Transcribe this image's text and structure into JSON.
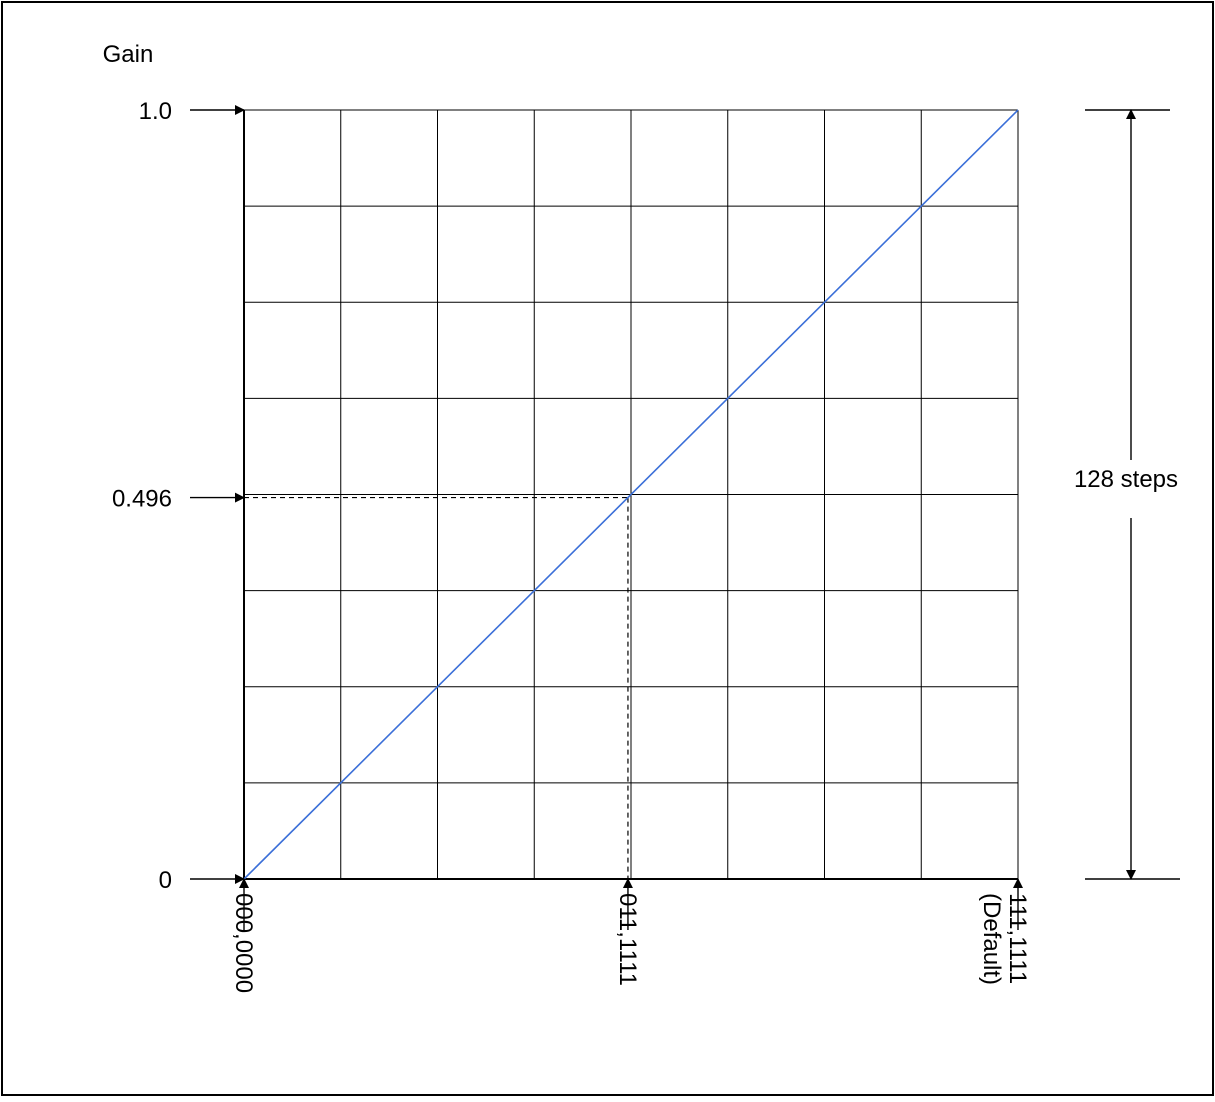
{
  "chart_data": {
    "type": "line",
    "ylabel": "Gain",
    "y_tick_labels": [
      "1.0",
      "0.496",
      "0"
    ],
    "y_ticks": [
      1.0,
      0.496,
      0
    ],
    "ylim": [
      0,
      1.0
    ],
    "x_tick_labels": [
      {
        "code": "000,0000",
        "note": ""
      },
      {
        "code": "011,1111",
        "note": ""
      },
      {
        "code": "111,1111",
        "note": "(Default)"
      }
    ],
    "x_ticks": [
      0,
      63,
      127
    ],
    "xlim": [
      0,
      127
    ],
    "grid": true,
    "grid_columns": 8,
    "grid_rows": 8,
    "series": [
      {
        "x": [
          0,
          127
        ],
        "y": [
          0,
          1.0
        ]
      }
    ],
    "marker": {
      "x": 63,
      "y": 0.496
    },
    "range_annotation": "128 steps",
    "line_color": "#3b6fd8"
  }
}
